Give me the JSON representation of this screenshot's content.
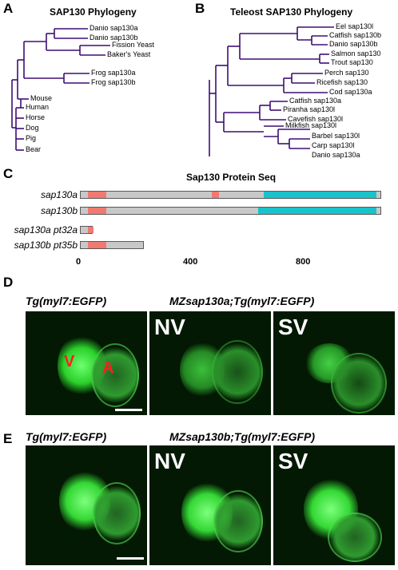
{
  "panelA": {
    "letter": "A",
    "title": "SAP130 Phylogeny",
    "taxa": [
      "Danio sap130a",
      "Danio sap130b",
      "Fission Yeast",
      "Baker's Yeast",
      "Frog sap130a",
      "Frog sap130b",
      "Mouse",
      "Human",
      "Horse",
      "Dog",
      "Pig",
      "Bear"
    ]
  },
  "panelB": {
    "letter": "B",
    "title": "Teleost SAP130 Phylogeny",
    "taxa": [
      "Eel sap130l",
      "Catfish sap130b",
      "Danio sap130b",
      "Salmon sap130",
      "Trout sap130",
      "Perch sap130",
      "Ricefish sap130",
      "Cod sap130a",
      "Catfish sap130a",
      "Piranha sap130l",
      "Cavefish sap130l",
      "Milkfish sap130l",
      "Barbel sap130l",
      "Carp sap130l",
      "Danio sap130a"
    ]
  },
  "panelC": {
    "letter": "C",
    "title": "Sap130 Protein Seq",
    "rows": [
      {
        "label": "sap130a",
        "length": 1055,
        "segments": [
          {
            "start": 25,
            "end": 90,
            "color": "#f07a72"
          },
          {
            "start": 460,
            "end": 485,
            "color": "#f07a72"
          },
          {
            "start": 640,
            "end": 1035,
            "color": "#19c3cc"
          }
        ]
      },
      {
        "label": "sap130b",
        "length": 1055,
        "segments": [
          {
            "start": 25,
            "end": 90,
            "color": "#f07a72"
          },
          {
            "start": 620,
            "end": 1035,
            "color": "#19c3cc"
          }
        ]
      },
      {
        "label": "sap130a pt32a",
        "length": 45,
        "segments": [
          {
            "start": 25,
            "end": 45,
            "color": "#f07a72"
          }
        ]
      },
      {
        "label": "sap130b pt35b",
        "length": 225,
        "segments": [
          {
            "start": 25,
            "end": 90,
            "color": "#f07a72"
          }
        ]
      }
    ],
    "axis_max": 1055,
    "ticks": [
      0,
      400,
      800
    ]
  },
  "panelD": {
    "letter": "D",
    "left_title": "Tg(myl7:EGFP)",
    "right_title": "MZsap130a;Tg(myl7:EGFP)",
    "nv": "NV",
    "sv": "SV",
    "ventricle": "V",
    "atrium": "A"
  },
  "panelE": {
    "letter": "E",
    "left_title": "Tg(myl7:EGFP)",
    "right_title": "MZsap130b;Tg(myl7:EGFP)",
    "nv": "NV",
    "sv": "SV"
  },
  "colors": {
    "tree": "#3d0f73",
    "domain_pink": "#f07a72",
    "domain_cyan": "#19c3cc",
    "egfp": "#3cff3c"
  }
}
